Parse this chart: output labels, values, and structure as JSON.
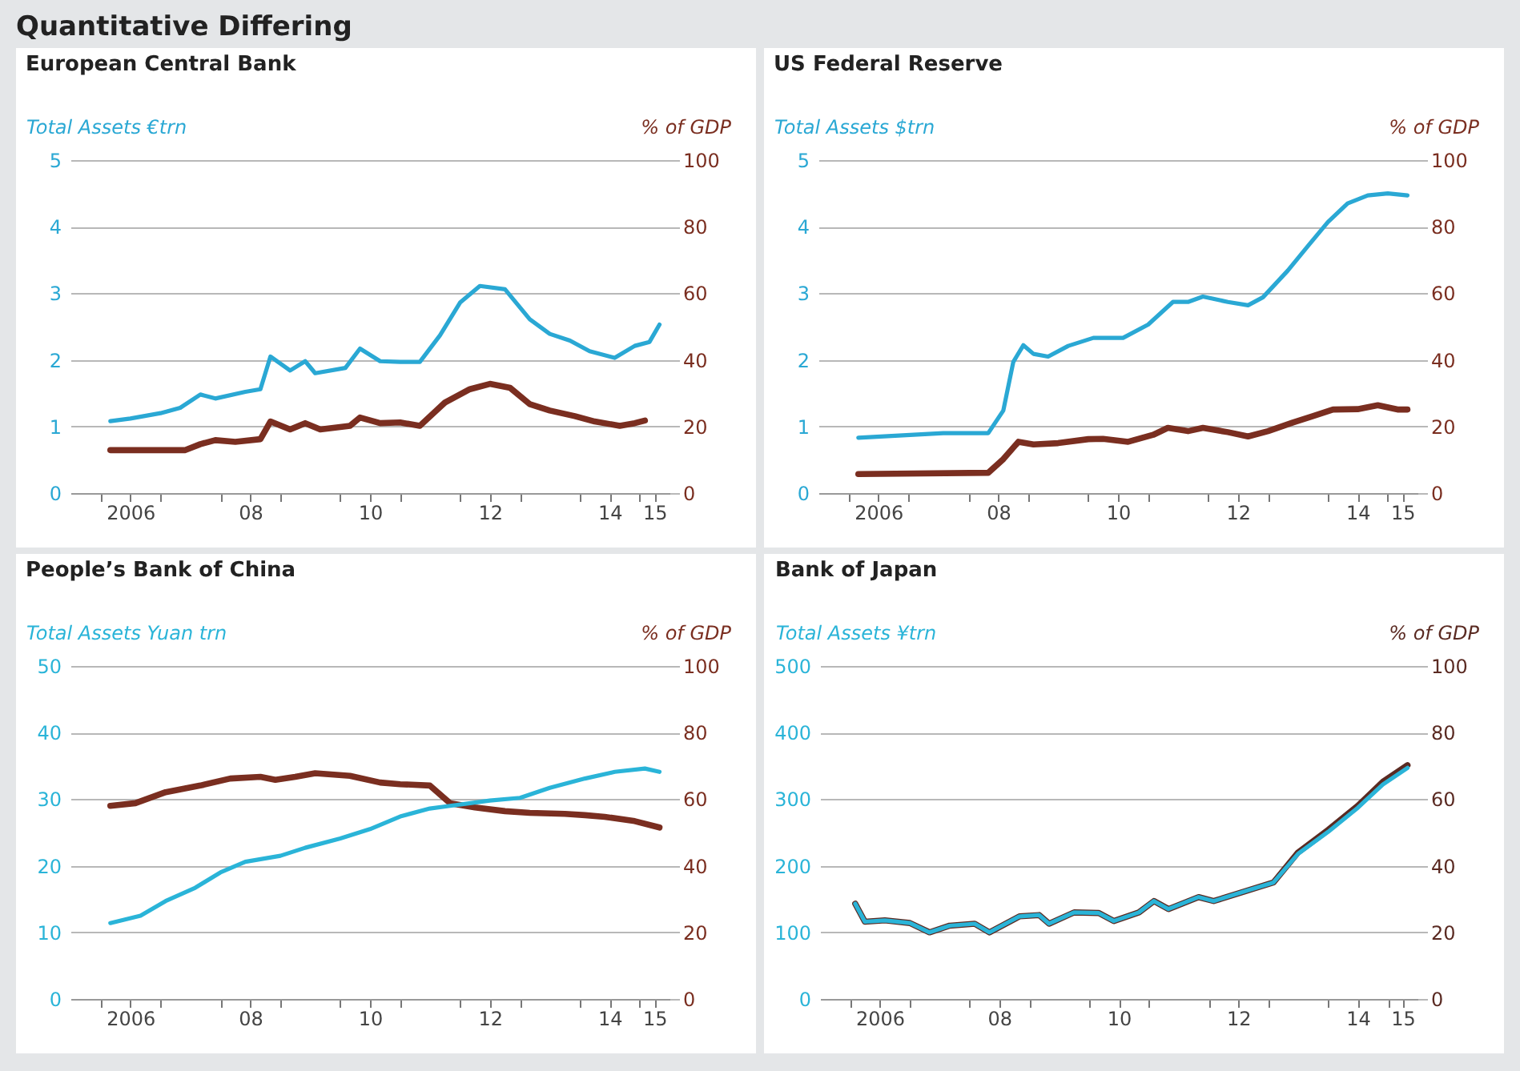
{
  "chart_data": [
    {
      "type": "other",
      "title": "Quantitative Differing"
    },
    {
      "type": "line",
      "title": "European Central Bank",
      "ylabel": "Total Assets €trn",
      "y2label": "% of GDP",
      "xlim": [
        "2005-07",
        "2015-07"
      ],
      "xticks": [
        {
          "value": "2006",
          "label": null
        },
        {
          "value": "2007",
          "label": null
        },
        {
          "value": "2008",
          "label": null
        },
        {
          "value": "2009",
          "label": null
        },
        {
          "value": "2010",
          "label": null
        },
        {
          "value": "2011",
          "label": null
        },
        {
          "value": "2012",
          "label": null
        },
        {
          "value": "2013",
          "label": null
        },
        {
          "value": "2014",
          "label": null
        },
        {
          "value": "2015",
          "label": null
        },
        {
          "value": "2006-07",
          "label": "2006"
        },
        {
          "value": "2008-07",
          "label": "08"
        },
        {
          "value": "2010-07",
          "label": "10"
        },
        {
          "value": "2012-07",
          "label": "12"
        },
        {
          "value": "2014-07",
          "label": "14"
        },
        {
          "value": "2015-04",
          "label": "15"
        }
      ],
      "ylim": [
        0,
        5
      ],
      "yticks": [
        0,
        1,
        2,
        3,
        4,
        5
      ],
      "y2lim": [
        0,
        100
      ],
      "y2ticks": [
        0,
        20,
        40,
        60,
        80,
        100
      ],
      "grid": "y",
      "series": [
        {
          "color": "#2aa8d4",
          "x": [
            "2006-03",
            "2006-07",
            "2007-01",
            "2007-05",
            "2007-09",
            "2007-12",
            "2008-06",
            "2008-09",
            "2008-11",
            "2009-03",
            "2009-06",
            "2009-08",
            "2010-02",
            "2010-05",
            "2010-09",
            "2011-01",
            "2011-05",
            "2011-09",
            "2012-01",
            "2012-05",
            "2012-10",
            "2013-03",
            "2013-07",
            "2013-11",
            "2014-03",
            "2014-08",
            "2014-12",
            "2015-03",
            "2015-05"
          ],
          "values": [
            1.08,
            1.12,
            1.2,
            1.28,
            1.48,
            1.42,
            1.52,
            1.56,
            2.05,
            1.84,
            1.98,
            1.8,
            1.88,
            2.17,
            1.98,
            1.97,
            1.97,
            2.37,
            2.86,
            3.11,
            3.06,
            2.61,
            2.39,
            2.29,
            2.13,
            2.03,
            2.21,
            2.27,
            2.53
          ]
        },
        {
          "axis": "y2",
          "color": "#7a2e20",
          "x": [
            "2006-03",
            "2007-06",
            "2007-09",
            "2007-12",
            "2008-04",
            "2008-09",
            "2008-11",
            "2009-03",
            "2009-06",
            "2009-09",
            "2010-03",
            "2010-05",
            "2010-09",
            "2011-01",
            "2011-05",
            "2011-10",
            "2012-03",
            "2012-07",
            "2012-11",
            "2013-03",
            "2013-07",
            "2013-12",
            "2014-04",
            "2014-09",
            "2014-12",
            "2015-02"
          ],
          "values": [
            12.9,
            12.9,
            14.7,
            15.9,
            15.4,
            16.2,
            21.5,
            19.1,
            21.0,
            19.1,
            20.2,
            22.7,
            21.0,
            21.2,
            20.2,
            27.2,
            31.2,
            32.8,
            31.6,
            26.7,
            24.8,
            23.1,
            21.5,
            20.2,
            21.0,
            21.8
          ]
        }
      ]
    },
    {
      "type": "line",
      "title": "US Federal Reserve",
      "ylabel": "Total Assets $trn",
      "y2label": "% of GDP",
      "xlim": [
        "2005-07",
        "2015-07"
      ],
      "xticks": [
        {
          "value": "2006",
          "label": null
        },
        {
          "value": "2007",
          "label": null
        },
        {
          "value": "2008",
          "label": null
        },
        {
          "value": "2009",
          "label": null
        },
        {
          "value": "2010",
          "label": null
        },
        {
          "value": "2011",
          "label": null
        },
        {
          "value": "2012",
          "label": null
        },
        {
          "value": "2013",
          "label": null
        },
        {
          "value": "2014",
          "label": null
        },
        {
          "value": "2015",
          "label": null
        },
        {
          "value": "2006-07",
          "label": "2006"
        },
        {
          "value": "2008-07",
          "label": "08"
        },
        {
          "value": "2010-07",
          "label": "10"
        },
        {
          "value": "2012-07",
          "label": "12"
        },
        {
          "value": "2014-07",
          "label": "14"
        },
        {
          "value": "2015-04",
          "label": "15"
        }
      ],
      "ylim": [
        0,
        5
      ],
      "yticks": [
        0,
        1,
        2,
        3,
        4,
        5
      ],
      "y2lim": [
        0,
        100
      ],
      "y2ticks": [
        0,
        20,
        40,
        60,
        80,
        100
      ],
      "grid": "y",
      "series": [
        {
          "color": "#2aa8d4",
          "x": [
            "2006-03",
            "2007-08",
            "2008-05",
            "2008-08",
            "2008-10",
            "2008-12",
            "2009-02",
            "2009-05",
            "2009-09",
            "2010-02",
            "2010-08",
            "2011-01",
            "2011-06",
            "2011-09",
            "2011-12",
            "2012-05",
            "2012-09",
            "2012-12",
            "2013-05",
            "2013-09",
            "2014-01",
            "2014-05",
            "2014-09",
            "2015-01",
            "2015-05"
          ],
          "values": [
            0.83,
            0.9,
            0.9,
            1.24,
            1.97,
            2.22,
            2.09,
            2.05,
            2.21,
            2.33,
            2.33,
            2.53,
            2.87,
            2.87,
            2.95,
            2.87,
            2.82,
            2.94,
            3.34,
            3.71,
            4.07,
            4.35,
            4.47,
            4.5,
            4.47
          ]
        },
        {
          "axis": "y2",
          "color": "#7a2e20",
          "x": [
            "2006-03",
            "2008-05",
            "2008-08",
            "2008-11",
            "2009-02",
            "2009-07",
            "2010-01",
            "2010-04",
            "2010-09",
            "2011-02",
            "2011-05",
            "2011-09",
            "2011-12",
            "2012-05",
            "2012-09",
            "2013-01",
            "2013-06",
            "2013-10",
            "2014-02",
            "2014-07",
            "2014-11",
            "2015-03",
            "2015-05"
          ],
          "values": [
            5.7,
            6.1,
            10.2,
            15.4,
            14.6,
            15.0,
            16.2,
            16.3,
            15.4,
            17.5,
            19.6,
            18.6,
            19.6,
            18.3,
            17.0,
            18.6,
            21.2,
            23.1,
            25.1,
            25.2,
            26.4,
            25.1,
            25.1
          ]
        }
      ]
    },
    {
      "type": "line",
      "title": "People’s Bank of China",
      "ylabel": "Total Assets Yuan trn",
      "y2label": "% of GDP",
      "xlim": [
        "2005-07",
        "2015-07"
      ],
      "xticks": [
        {
          "value": "2006",
          "label": null
        },
        {
          "value": "2007",
          "label": null
        },
        {
          "value": "2008",
          "label": null
        },
        {
          "value": "2009",
          "label": null
        },
        {
          "value": "2010",
          "label": null
        },
        {
          "value": "2011",
          "label": null
        },
        {
          "value": "2012",
          "label": null
        },
        {
          "value": "2013",
          "label": null
        },
        {
          "value": "2014",
          "label": null
        },
        {
          "value": "2015",
          "label": null
        },
        {
          "value": "2006-07",
          "label": "2006"
        },
        {
          "value": "2008-07",
          "label": "08"
        },
        {
          "value": "2010-07",
          "label": "10"
        },
        {
          "value": "2012-07",
          "label": "12"
        },
        {
          "value": "2014-07",
          "label": "14"
        },
        {
          "value": "2015-04",
          "label": "15"
        }
      ],
      "ylim": [
        0,
        50
      ],
      "yticks": [
        0,
        10,
        20,
        30,
        40,
        50
      ],
      "y2lim": [
        0,
        100
      ],
      "y2ticks": [
        0,
        20,
        40,
        60,
        80,
        100
      ],
      "grid": "y",
      "series": [
        {
          "color": "#2ab4d8",
          "x": [
            "2006-03",
            "2006-09",
            "2007-02",
            "2007-08",
            "2008-01",
            "2008-06",
            "2009-01",
            "2009-06",
            "2010-01",
            "2010-07",
            "2011-01",
            "2011-07",
            "2011-11",
            "2012-07",
            "2013-01",
            "2013-07",
            "2014-02",
            "2014-08",
            "2015-02",
            "2015-05"
          ],
          "values": [
            11.4,
            12.5,
            14.7,
            16.7,
            19.0,
            20.6,
            21.5,
            22.7,
            24.1,
            25.5,
            27.4,
            28.6,
            29.0,
            29.8,
            30.2,
            31.7,
            33.1,
            34.1,
            34.6,
            34.1
          ]
        },
        {
          "axis": "y2",
          "color": "#7a2e20",
          "x": [
            "2006-03",
            "2006-08",
            "2007-02",
            "2007-09",
            "2008-03",
            "2008-09",
            "2008-12",
            "2009-04",
            "2009-08",
            "2010-03",
            "2010-09",
            "2011-01",
            "2011-07",
            "2011-11",
            "2012-04",
            "2012-10",
            "2013-03",
            "2013-10",
            "2014-02",
            "2014-06",
            "2014-12",
            "2015-05"
          ],
          "values": [
            58.0,
            58.8,
            62.1,
            64.1,
            66.2,
            66.7,
            65.8,
            66.7,
            67.8,
            67.0,
            65.0,
            64.5,
            64.1,
            58.8,
            57.5,
            56.4,
            55.9,
            55.6,
            55.2,
            54.7,
            53.4,
            51.5
          ]
        }
      ]
    },
    {
      "type": "line",
      "title": "Bank of Japan",
      "ylabel": "Total Assets ¥trn",
      "y2label": "% of GDP",
      "xlim": [
        "2005-07",
        "2015-07"
      ],
      "xticks": [
        {
          "value": "2006",
          "label": null
        },
        {
          "value": "2007",
          "label": null
        },
        {
          "value": "2008",
          "label": null
        },
        {
          "value": "2009",
          "label": null
        },
        {
          "value": "2010",
          "label": null
        },
        {
          "value": "2011",
          "label": null
        },
        {
          "value": "2012",
          "label": null
        },
        {
          "value": "2013",
          "label": null
        },
        {
          "value": "2014",
          "label": null
        },
        {
          "value": "2015",
          "label": null
        },
        {
          "value": "2006-07",
          "label": "2006"
        },
        {
          "value": "2008-07",
          "label": "08"
        },
        {
          "value": "2010-07",
          "label": "10"
        },
        {
          "value": "2012-07",
          "label": "12"
        },
        {
          "value": "2014-07",
          "label": "14"
        },
        {
          "value": "2015-04",
          "label": "15"
        }
      ],
      "ylim": [
        0,
        500
      ],
      "yticks": [
        0,
        100,
        200,
        300,
        400,
        500
      ],
      "y2lim": [
        0,
        100
      ],
      "y2ticks": [
        0,
        20,
        40,
        60,
        80,
        100
      ],
      "grid": "y",
      "series": [
        {
          "color": "#2ab4d8",
          "x": [
            "2006-02",
            "2006-04",
            "2006-08",
            "2007-01",
            "2007-05",
            "2007-09",
            "2008-02",
            "2008-05",
            "2008-11",
            "2009-03",
            "2009-05",
            "2009-10",
            "2010-03",
            "2010-06",
            "2010-11",
            "2011-02",
            "2011-05",
            "2011-11",
            "2012-02",
            "2012-08",
            "2013-02",
            "2013-07",
            "2014-01",
            "2014-07",
            "2014-12",
            "2015-05"
          ],
          "values": [
            143,
            116,
            118,
            114,
            100,
            110,
            113,
            100,
            124,
            126,
            113,
            130,
            129,
            117,
            130,
            147,
            135,
            153,
            147,
            161,
            175,
            218,
            251,
            287,
            322,
            347
          ]
        },
        {
          "axis": "y2",
          "color": "#5a2a22",
          "x": [
            "2006-02",
            "2006-04",
            "2006-08",
            "2007-01",
            "2007-05",
            "2007-09",
            "2008-02",
            "2008-05",
            "2008-11",
            "2009-03",
            "2009-05",
            "2009-10",
            "2010-03",
            "2010-06",
            "2010-11",
            "2011-02",
            "2011-05",
            "2011-11",
            "2012-02",
            "2012-08",
            "2013-02",
            "2013-07",
            "2014-01",
            "2014-07",
            "2014-12",
            "2015-05"
          ],
          "values": [
            28.6,
            23.2,
            23.6,
            22.8,
            20.0,
            22.0,
            22.6,
            20.0,
            24.8,
            25.2,
            22.6,
            26.0,
            25.8,
            23.4,
            26.0,
            29.4,
            27.0,
            30.6,
            29.4,
            32.2,
            35.0,
            44.0,
            50.8,
            58.0,
            65.2,
            70.2
          ]
        }
      ]
    }
  ]
}
